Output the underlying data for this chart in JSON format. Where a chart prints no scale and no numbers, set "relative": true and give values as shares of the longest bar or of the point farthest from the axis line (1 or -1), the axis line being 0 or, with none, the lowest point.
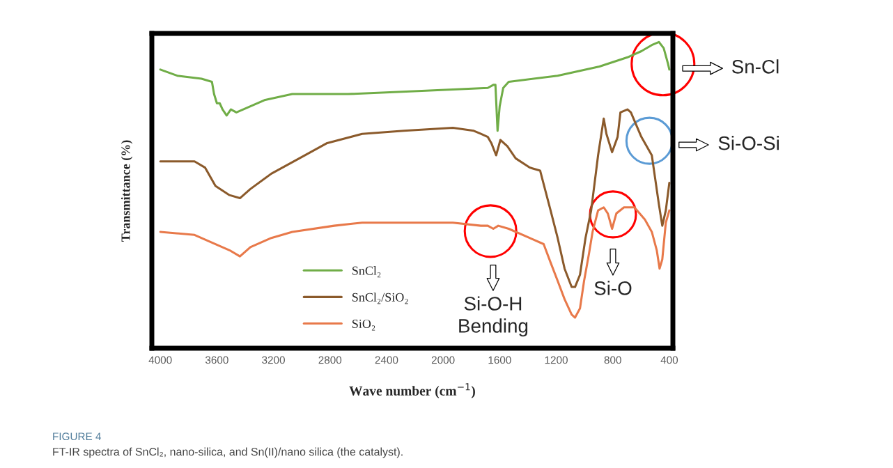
{
  "chart_data": {
    "type": "line",
    "relative": true,
    "xlabel": "Wave number (cm$^{−1}$)",
    "ylabel": "Transmittance (%)",
    "xlim": [
      4060,
      375
    ],
    "xticks": [
      4000,
      3600,
      3200,
      2800,
      2400,
      2000,
      1600,
      1200,
      800,
      400
    ],
    "grid": false,
    "legend": "bottom left",
    "marker": "none",
    "line_style": "solid",
    "series": [
      {
        "name": "SnCl₂",
        "color": "#70ad47",
        "x": [
          4000,
          3881,
          3709,
          3635,
          3620,
          3600,
          3580,
          3560,
          3531,
          3501,
          3462,
          3363,
          3264,
          3067,
          2672,
          2178,
          1684,
          1645,
          1630,
          1615,
          1600,
          1575,
          1536,
          1190,
          894,
          696,
          598,
          524,
          474,
          440,
          410,
          400
        ],
        "values": [
          0.91,
          0.89,
          0.88,
          0.87,
          0.83,
          0.8,
          0.8,
          0.78,
          0.76,
          0.78,
          0.77,
          0.79,
          0.81,
          0.83,
          0.83,
          0.84,
          0.85,
          0.86,
          0.86,
          0.71,
          0.79,
          0.85,
          0.87,
          0.89,
          0.92,
          0.95,
          0.97,
          0.99,
          1.0,
          0.98,
          0.93,
          0.91
        ]
      },
      {
        "name": "SnCl₂/SiO₂",
        "color": "#8b5a2b",
        "x": [
          4000,
          3758,
          3684,
          3610,
          3511,
          3437,
          3363,
          3215,
          3017,
          2820,
          2573,
          2277,
          1931,
          1783,
          1733,
          1684,
          1659,
          1625,
          1595,
          1546,
          1487,
          1388,
          1314,
          1240,
          1190,
          1141,
          1091,
          1067,
          1032,
          993,
          953,
          904,
          864,
          845,
          805,
          766,
          746,
          696,
          672,
          598,
          524,
          474,
          450,
          425,
          400
        ],
        "values": [
          0.61,
          0.61,
          0.59,
          0.53,
          0.5,
          0.49,
          0.52,
          0.57,
          0.62,
          0.67,
          0.7,
          0.71,
          0.72,
          0.71,
          0.7,
          0.69,
          0.67,
          0.63,
          0.68,
          0.66,
          0.62,
          0.59,
          0.58,
          0.45,
          0.36,
          0.26,
          0.2,
          0.2,
          0.24,
          0.36,
          0.45,
          0.63,
          0.75,
          0.7,
          0.64,
          0.69,
          0.77,
          0.78,
          0.77,
          0.69,
          0.63,
          0.47,
          0.4,
          0.45,
          0.54
        ]
      },
      {
        "name": "SiO₂",
        "color": "#e8794a",
        "x": [
          4000,
          3758,
          3660,
          3511,
          3437,
          3363,
          3215,
          3067,
          2771,
          2573,
          2376,
          2178,
          1931,
          1733,
          1684,
          1645,
          1610,
          1536,
          1388,
          1289,
          1240,
          1190,
          1141,
          1091,
          1067,
          1032,
          1003,
          968,
          943,
          904,
          864,
          835,
          805,
          775,
          721,
          647,
          573,
          524,
          489,
          469,
          450,
          425,
          400
        ],
        "values": [
          0.38,
          0.37,
          0.35,
          0.32,
          0.3,
          0.33,
          0.36,
          0.38,
          0.4,
          0.41,
          0.41,
          0.41,
          0.41,
          0.4,
          0.4,
          0.39,
          0.4,
          0.39,
          0.36,
          0.34,
          0.28,
          0.22,
          0.16,
          0.11,
          0.1,
          0.13,
          0.22,
          0.31,
          0.38,
          0.45,
          0.46,
          0.44,
          0.39,
          0.44,
          0.46,
          0.46,
          0.42,
          0.38,
          0.32,
          0.26,
          0.29,
          0.41,
          0.45
        ]
      }
    ],
    "annotations": [
      "Sn-Cl",
      "Si-O-Si",
      "Si-O-H\nBending",
      "Si-O",
      "FIGURE 4",
      "FT-IR spectra of SnCl₂, nano-silica, and Sn(II)/nano silica (the catalyst)."
    ]
  }
}
